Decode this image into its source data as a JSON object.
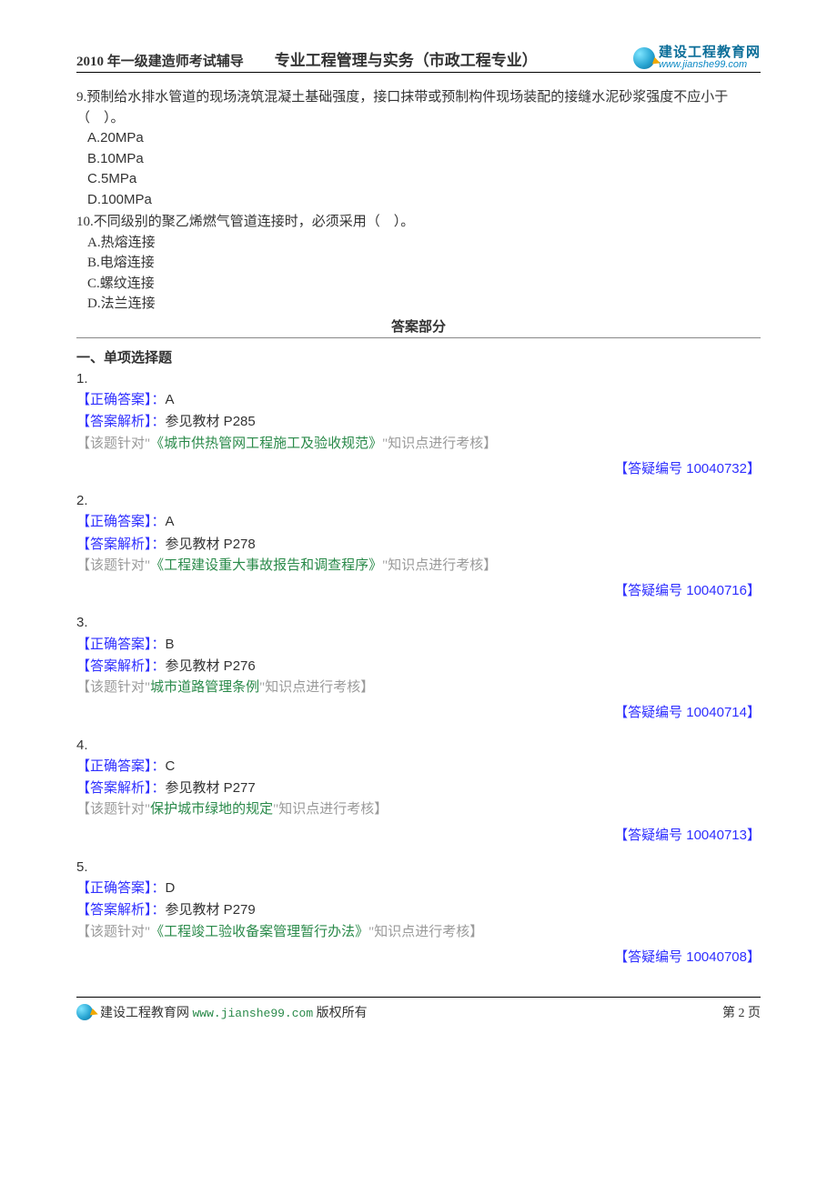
{
  "header": {
    "left": "2010 年一级建造师考试辅导",
    "mid": "专业工程管理与实务（市政工程专业）",
    "logo_cn": "建设工程教育网",
    "logo_url": "www.jianshe99.com"
  },
  "questions": [
    {
      "num": "9.",
      "text": "预制给水排水管道的现场浇筑混凝土基础强度，接口抹带或预制构件现场装配的接缝水泥砂浆强度不应小于（　）。",
      "opts": [
        "A.20MPa",
        "B.10MPa",
        "C.5MPa",
        "D.100MPa"
      ],
      "opt_class": "opt"
    },
    {
      "num": "10.",
      "text": "不同级别的聚乙烯燃气管道连接时，必须采用（　）。",
      "opts": [
        "A.热熔连接",
        "B.电熔连接",
        "C.螺纹连接",
        "D.法兰连接"
      ],
      "opt_class": "opt-cn"
    }
  ],
  "answer_section_title": "答案部分",
  "answer_heading": "一、单项选择题",
  "labels": {
    "correct": "【正确答案】：",
    "analysis": "【答案解析】：",
    "note_prefix": "【该题针对\"",
    "note_suffix_kp": "\"知识点进行考核】",
    "faq_prefix": "【答疑编号 ",
    "faq_suffix": "】"
  },
  "answers": [
    {
      "n": "1.",
      "correct": "A",
      "analysis": "参见教材 P285",
      "topic": "《城市供热管网工程施工及验收规范》",
      "faq": "10040732"
    },
    {
      "n": "2.",
      "correct": "A",
      "analysis": "参见教材 P278",
      "topic": "《工程建设重大事故报告和调查程序》",
      "faq": "10040716"
    },
    {
      "n": "3.",
      "correct": "B",
      "analysis": "参见教材 P276",
      "topic": "城市道路管理条例",
      "faq": "10040714"
    },
    {
      "n": "4.",
      "correct": "C",
      "analysis": "参见教材 P277",
      "topic": "保护城市绿地的规定",
      "faq": "10040713"
    },
    {
      "n": "5.",
      "correct": "D",
      "analysis": "参见教材 P279",
      "topic": "《工程竣工验收备案管理暂行办法》",
      "faq": "10040708"
    }
  ],
  "footer": {
    "text_prefix": "建设工程教育网 ",
    "url": "www.jianshe99.com",
    "text_suffix": " 版权所有",
    "page": "第 2 页"
  }
}
